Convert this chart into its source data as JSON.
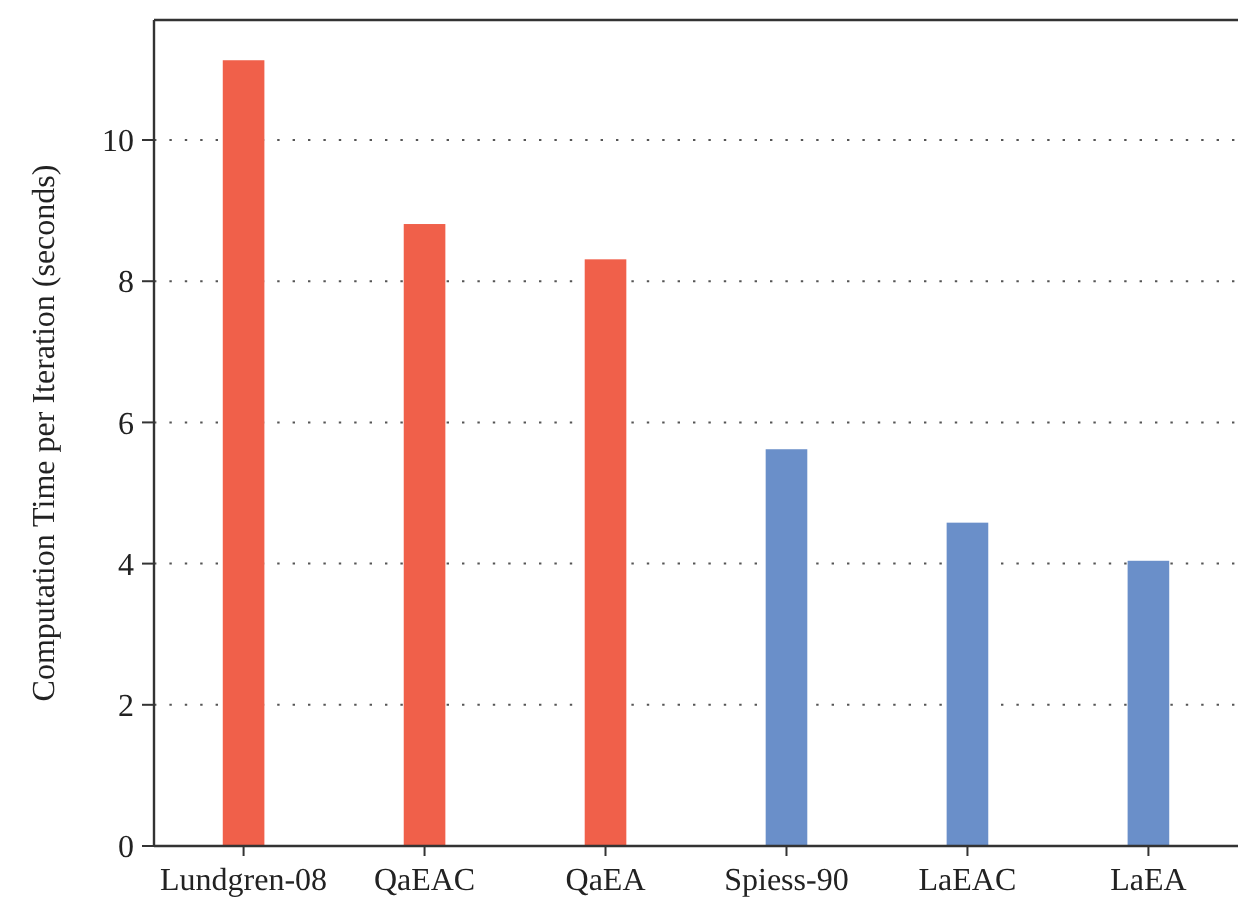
{
  "chart_data": {
    "type": "bar",
    "ylabel": "Computation Time per Iteration (seconds)",
    "categories": [
      "Lundgren-08",
      "QaEAC",
      "QaEA",
      "Spiess-90",
      "LaEAC",
      "LaEA"
    ],
    "values": [
      11.13,
      8.81,
      8.31,
      5.62,
      4.58,
      4.04
    ],
    "colors": [
      "#f0604a",
      "#f0604a",
      "#f0604a",
      "#6a8fc9",
      "#6a8fc9",
      "#6a8fc9"
    ],
    "ylim": [
      0,
      11.7
    ],
    "yticks": [
      0,
      2,
      4,
      6,
      8,
      10
    ],
    "grid": "y"
  }
}
